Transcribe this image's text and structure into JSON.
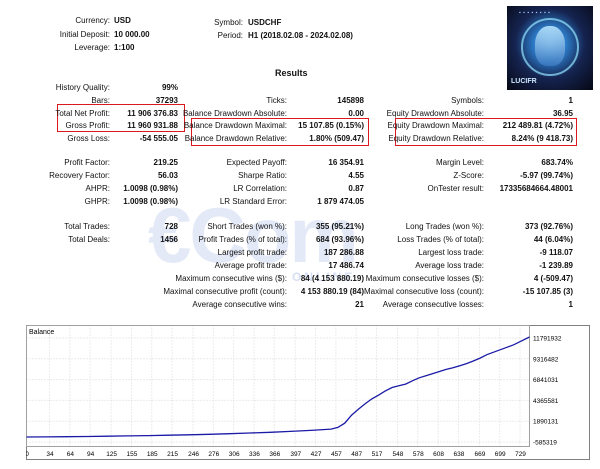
{
  "header": {
    "currency_label": "Currency:",
    "currency": "USD",
    "initial_deposit_label": "Initial Deposit:",
    "initial_deposit": "10 000.00",
    "leverage_label": "Leverage:",
    "leverage": "1:100",
    "symbol_label": "Symbol:",
    "symbol": "USDCHF",
    "period_label": "Period:",
    "period": "H1 (2018.02.08 - 2024.02.08)"
  },
  "logo": {
    "brand": "LUCIFR",
    "icon": "robot-face-icon"
  },
  "watermark": {
    "main": "€Com",
    "sub": "ONLINE"
  },
  "results_title": "Results",
  "stats": {
    "history_quality_label": "History Quality:",
    "history_quality": "99%",
    "bars_label": "Bars:",
    "bars": "37293",
    "ticks_label": "Ticks:",
    "ticks": "145898",
    "symbols_label": "Symbols:",
    "symbols": "1",
    "total_net_profit_label": "Total Net Profit:",
    "total_net_profit": "11 906 376.83",
    "balance_dd_abs_label": "Balance Drawdown Absolute:",
    "balance_dd_abs": "0.00",
    "equity_dd_abs_label": "Equity Drawdown Absolute:",
    "equity_dd_abs": "36.95",
    "gross_profit_label": "Gross Profit:",
    "gross_profit": "11 960 931.88",
    "balance_dd_max_label": "Balance Drawdown Maximal:",
    "balance_dd_max": "15 107.85 (0.15%)",
    "equity_dd_max_label": "Equity Drawdown Maximal:",
    "equity_dd_max": "212 489.81 (4.72%)",
    "gross_loss_label": "Gross Loss:",
    "gross_loss": "-54 555.05",
    "balance_dd_rel_label": "Balance Drawdown Relative:",
    "balance_dd_rel": "1.80% (509.47)",
    "equity_dd_rel_label": "Equity Drawdown Relative:",
    "equity_dd_rel": "8.24% (9 418.73)",
    "profit_factor_label": "Profit Factor:",
    "profit_factor": "219.25",
    "expected_payoff_label": "Expected Payoff:",
    "expected_payoff": "16 354.91",
    "margin_level_label": "Margin Level:",
    "margin_level": "683.74%",
    "recovery_factor_label": "Recovery Factor:",
    "recovery_factor": "56.03",
    "sharpe_label": "Sharpe Ratio:",
    "sharpe": "4.55",
    "zscore_label": "Z-Score:",
    "zscore": "-5.97 (99.74%)",
    "ahpr_label": "AHPR:",
    "ahpr": "1.0098 (0.98%)",
    "lr_corr_label": "LR Correlation:",
    "lr_corr": "0.87",
    "ontester_label": "OnTester result:",
    "ontester": "17335684664.48001",
    "ghpr_label": "GHPR:",
    "ghpr": "1.0098 (0.98%)",
    "lr_err_label": "LR Standard Error:",
    "lr_err": "1 879 474.05",
    "total_trades_label": "Total Trades:",
    "total_trades": "728",
    "short_trades_label": "Short Trades (won %):",
    "short_trades": "355 (95.21%)",
    "long_trades_label": "Long Trades (won %):",
    "long_trades": "373 (92.76%)",
    "total_deals_label": "Total Deals:",
    "total_deals": "1456",
    "profit_trades_label": "Profit Trades (% of total):",
    "profit_trades": "684 (93.96%)",
    "loss_trades_label": "Loss Trades (% of total):",
    "loss_trades": "44 (6.04%)",
    "largest_profit_label": "Largest profit trade:",
    "largest_profit": "187 286.88",
    "largest_loss_label": "Largest loss trade:",
    "largest_loss": "-9 118.07",
    "avg_profit_label": "Average profit trade:",
    "avg_profit": "17 486.74",
    "avg_loss_label": "Average loss trade:",
    "avg_loss": "-1 239.89",
    "max_consec_wins_label": "Maximum consecutive wins ($):",
    "max_consec_wins": "84 (4 153 880.19)",
    "max_consec_losses_label": "Maximum consecutive losses ($):",
    "max_consec_losses": "4 (-509.47)",
    "max_consec_profit_label": "Maximal consecutive profit (count):",
    "max_consec_profit": "4 153 880.19 (84)",
    "max_consec_loss_label": "Maximal consecutive loss (count):",
    "max_consec_loss": "-15 107.85 (3)",
    "avg_consec_wins_label": "Average consecutive wins:",
    "avg_consec_wins": "21",
    "avg_consec_losses_label": "Average consecutive losses:",
    "avg_consec_losses": "1"
  },
  "chart_data": {
    "type": "line",
    "title": "Balance",
    "legend": "top-left",
    "grid": true,
    "x_ticks": [
      0,
      34,
      64,
      94,
      125,
      155,
      185,
      215,
      246,
      276,
      306,
      336,
      366,
      397,
      427,
      457,
      487,
      517,
      548,
      578,
      608,
      638,
      669,
      699,
      729
    ],
    "y_ticks": [
      "11791932",
      "9316482",
      "6841031",
      "4365581",
      "1890131",
      "-585319"
    ],
    "xlim": [
      0,
      743
    ],
    "ylim": [
      -585319,
      11791932
    ],
    "line_color": "#1a1aa6",
    "series": [
      {
        "x": [
          0,
          30,
          60,
          90,
          120,
          150,
          180,
          210,
          240,
          270,
          300,
          330,
          360,
          390,
          420,
          450,
          460,
          470,
          480,
          490,
          500,
          510,
          520,
          530,
          540,
          550,
          560,
          570,
          580,
          590,
          600,
          610,
          620,
          630,
          640,
          650,
          660,
          670,
          680,
          690,
          700,
          710,
          720,
          730,
          743
        ],
        "y": [
          10000,
          25000,
          45000,
          70000,
          100000,
          135000,
          175000,
          220000,
          270000,
          330000,
          400000,
          480000,
          570000,
          680000,
          800000,
          950000,
          1150000,
          1650000,
          2600000,
          3300000,
          3950000,
          4550000,
          4980000,
          5500000,
          5900000,
          6100000,
          6300000,
          6700000,
          7050000,
          7300000,
          7550000,
          7800000,
          8050000,
          8250000,
          8500000,
          8750000,
          9050000,
          9400000,
          9800000,
          10100000,
          10400000,
          10700000,
          11000000,
          11400000,
          11916000
        ]
      }
    ]
  }
}
